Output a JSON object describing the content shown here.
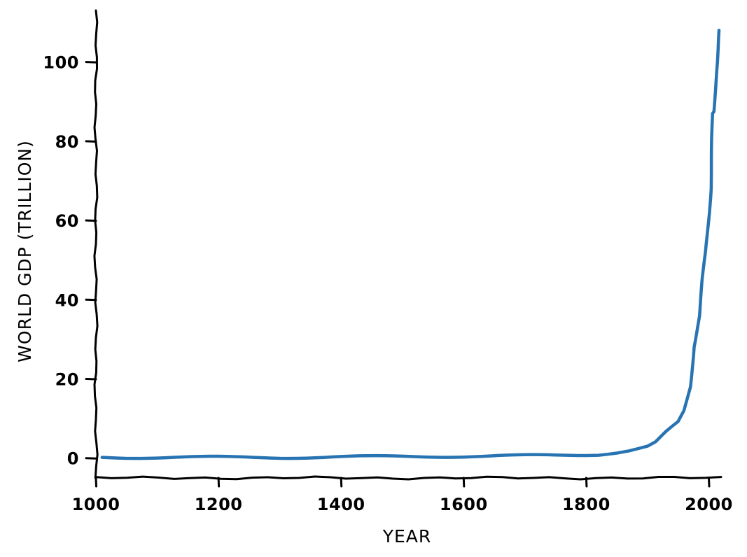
{
  "chart_data": {
    "type": "line",
    "title": "",
    "xlabel": "YEAR",
    "ylabel": "WORLD GDP (TRILLION)",
    "xlim": [
      1000,
      2020
    ],
    "ylim": [
      -5,
      113
    ],
    "xticks": [
      1000,
      1200,
      1400,
      1600,
      1800,
      2000
    ],
    "yticks": [
      0,
      20,
      40,
      60,
      80,
      100
    ],
    "grid": false,
    "style": "xkcd",
    "line_color": "#2874b2",
    "series": [
      {
        "x": [
          1010,
          1100,
          1200,
          1300,
          1400,
          1500,
          1600,
          1700,
          1750,
          1800,
          1820,
          1850,
          1870,
          1900,
          1913,
          1930,
          1950,
          1960,
          1965,
          1970,
          1975,
          1980,
          1985,
          1990,
          1995,
          2000,
          2003,
          2005,
          2007,
          2009,
          2010,
          2011,
          2012,
          2013,
          2014,
          2015,
          2016
        ],
        "y": [
          0.2,
          0.2,
          0.2,
          0.2,
          0.3,
          0.4,
          0.5,
          0.6,
          0.7,
          0.9,
          1.0,
          1.5,
          2.0,
          3.0,
          4.0,
          6.5,
          9.0,
          12.0,
          15.0,
          18.0,
          28.0,
          32.0,
          36.0,
          45.0,
          52.0,
          62.0,
          68.0,
          78.0,
          87.0,
          87.5,
          91.0,
          95.0,
          98.0,
          100.0,
          103.0,
          106.0,
          108.0
        ]
      }
    ]
  }
}
